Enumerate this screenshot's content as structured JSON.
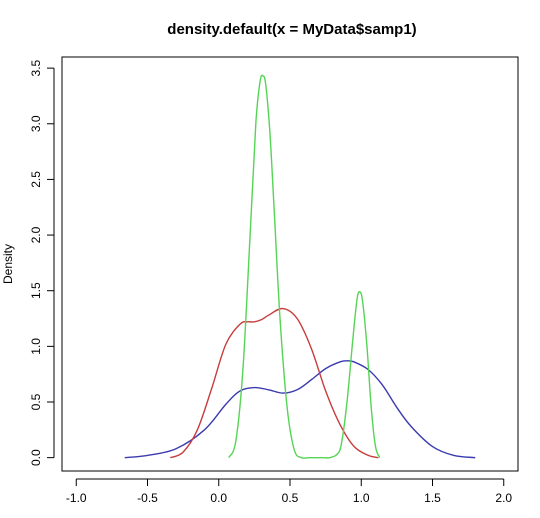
{
  "chart_data": {
    "type": "line",
    "title": "density.default(x = MyData$samp1)",
    "xlabel": "",
    "ylabel": "Density",
    "xlim": [
      -1.1,
      2.1
    ],
    "ylim": [
      -0.12,
      3.6
    ],
    "xticks": [
      "-1.0",
      "-0.5",
      "0.0",
      "0.5",
      "1.0",
      "1.5",
      "2.0"
    ],
    "xtick_values": [
      -1.0,
      -0.5,
      0.0,
      0.5,
      1.0,
      1.5,
      2.0
    ],
    "yticks": [
      "0.0",
      "0.5",
      "1.0",
      "1.5",
      "2.0",
      "2.5",
      "3.0",
      "3.5"
    ],
    "ytick_values": [
      0.0,
      0.5,
      1.0,
      1.5,
      2.0,
      2.5,
      3.0,
      3.5
    ],
    "grid": false,
    "legend": "none",
    "series": [
      {
        "color": "#3b3bb0",
        "x": [
          -0.66,
          -0.5,
          -0.3,
          -0.1,
          0.05,
          0.15,
          0.25,
          0.35,
          0.45,
          0.55,
          0.65,
          0.75,
          0.85,
          0.9,
          0.95,
          1.05,
          1.15,
          1.25,
          1.35,
          1.5,
          1.65,
          1.8
        ],
        "y": [
          0.0,
          0.02,
          0.08,
          0.25,
          0.48,
          0.6,
          0.63,
          0.61,
          0.58,
          0.61,
          0.7,
          0.8,
          0.86,
          0.87,
          0.86,
          0.79,
          0.65,
          0.45,
          0.28,
          0.1,
          0.02,
          0.0
        ]
      },
      {
        "color": "#c83c3c",
        "x": [
          -0.34,
          -0.25,
          -0.15,
          -0.05,
          0.05,
          0.15,
          0.2,
          0.25,
          0.3,
          0.35,
          0.45,
          0.55,
          0.65,
          0.75,
          0.85,
          0.95,
          1.05,
          1.12
        ],
        "y": [
          0.0,
          0.05,
          0.25,
          0.62,
          1.02,
          1.2,
          1.22,
          1.22,
          1.24,
          1.28,
          1.34,
          1.25,
          0.98,
          0.6,
          0.3,
          0.1,
          0.02,
          0.0
        ]
      },
      {
        "color": "#55d455",
        "x": [
          0.07,
          0.12,
          0.17,
          0.22,
          0.26,
          0.29,
          0.31,
          0.33,
          0.36,
          0.39,
          0.43,
          0.48,
          0.53,
          0.58,
          0.63,
          0.68,
          0.73,
          0.78,
          0.83,
          0.86,
          0.9,
          0.94,
          0.97,
          0.99,
          1.01,
          1.04,
          1.07,
          1.1,
          1.13
        ],
        "y": [
          0.0,
          0.15,
          0.8,
          2.0,
          3.0,
          3.38,
          3.43,
          3.35,
          2.9,
          2.2,
          1.25,
          0.45,
          0.07,
          0.0,
          0.0,
          0.0,
          0.0,
          0.0,
          0.03,
          0.12,
          0.5,
          1.05,
          1.42,
          1.49,
          1.4,
          1.0,
          0.45,
          0.1,
          0.0
        ]
      }
    ]
  }
}
